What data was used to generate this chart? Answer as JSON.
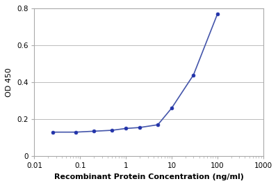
{
  "x": [
    0.025,
    0.08,
    0.2,
    0.5,
    1,
    2,
    5,
    10,
    30,
    100
  ],
  "y": [
    0.13,
    0.13,
    0.135,
    0.14,
    0.15,
    0.155,
    0.17,
    0.26,
    0.44,
    0.77
  ],
  "xlabel": "Recombinant Protein Concentration (ng/ml)",
  "ylabel": "OD 450",
  "line_color": "#4455aa",
  "marker_color": "#2233aa",
  "marker_size": 3.5,
  "line_width": 1.2,
  "xlim": [
    0.01,
    1000
  ],
  "ylim": [
    0,
    0.8
  ],
  "yticks": [
    0,
    0.2,
    0.4,
    0.6,
    0.8
  ],
  "xticks": [
    0.01,
    0.1,
    1,
    10,
    100,
    1000
  ],
  "xtick_labels": [
    "0.01",
    "0.1",
    "1",
    "10",
    "100",
    "1000"
  ],
  "background_color": "#ffffff",
  "grid_color": "#bbbbbb",
  "axis_fontsize": 8,
  "tick_fontsize": 7.5,
  "spine_color": "#aaaaaa"
}
